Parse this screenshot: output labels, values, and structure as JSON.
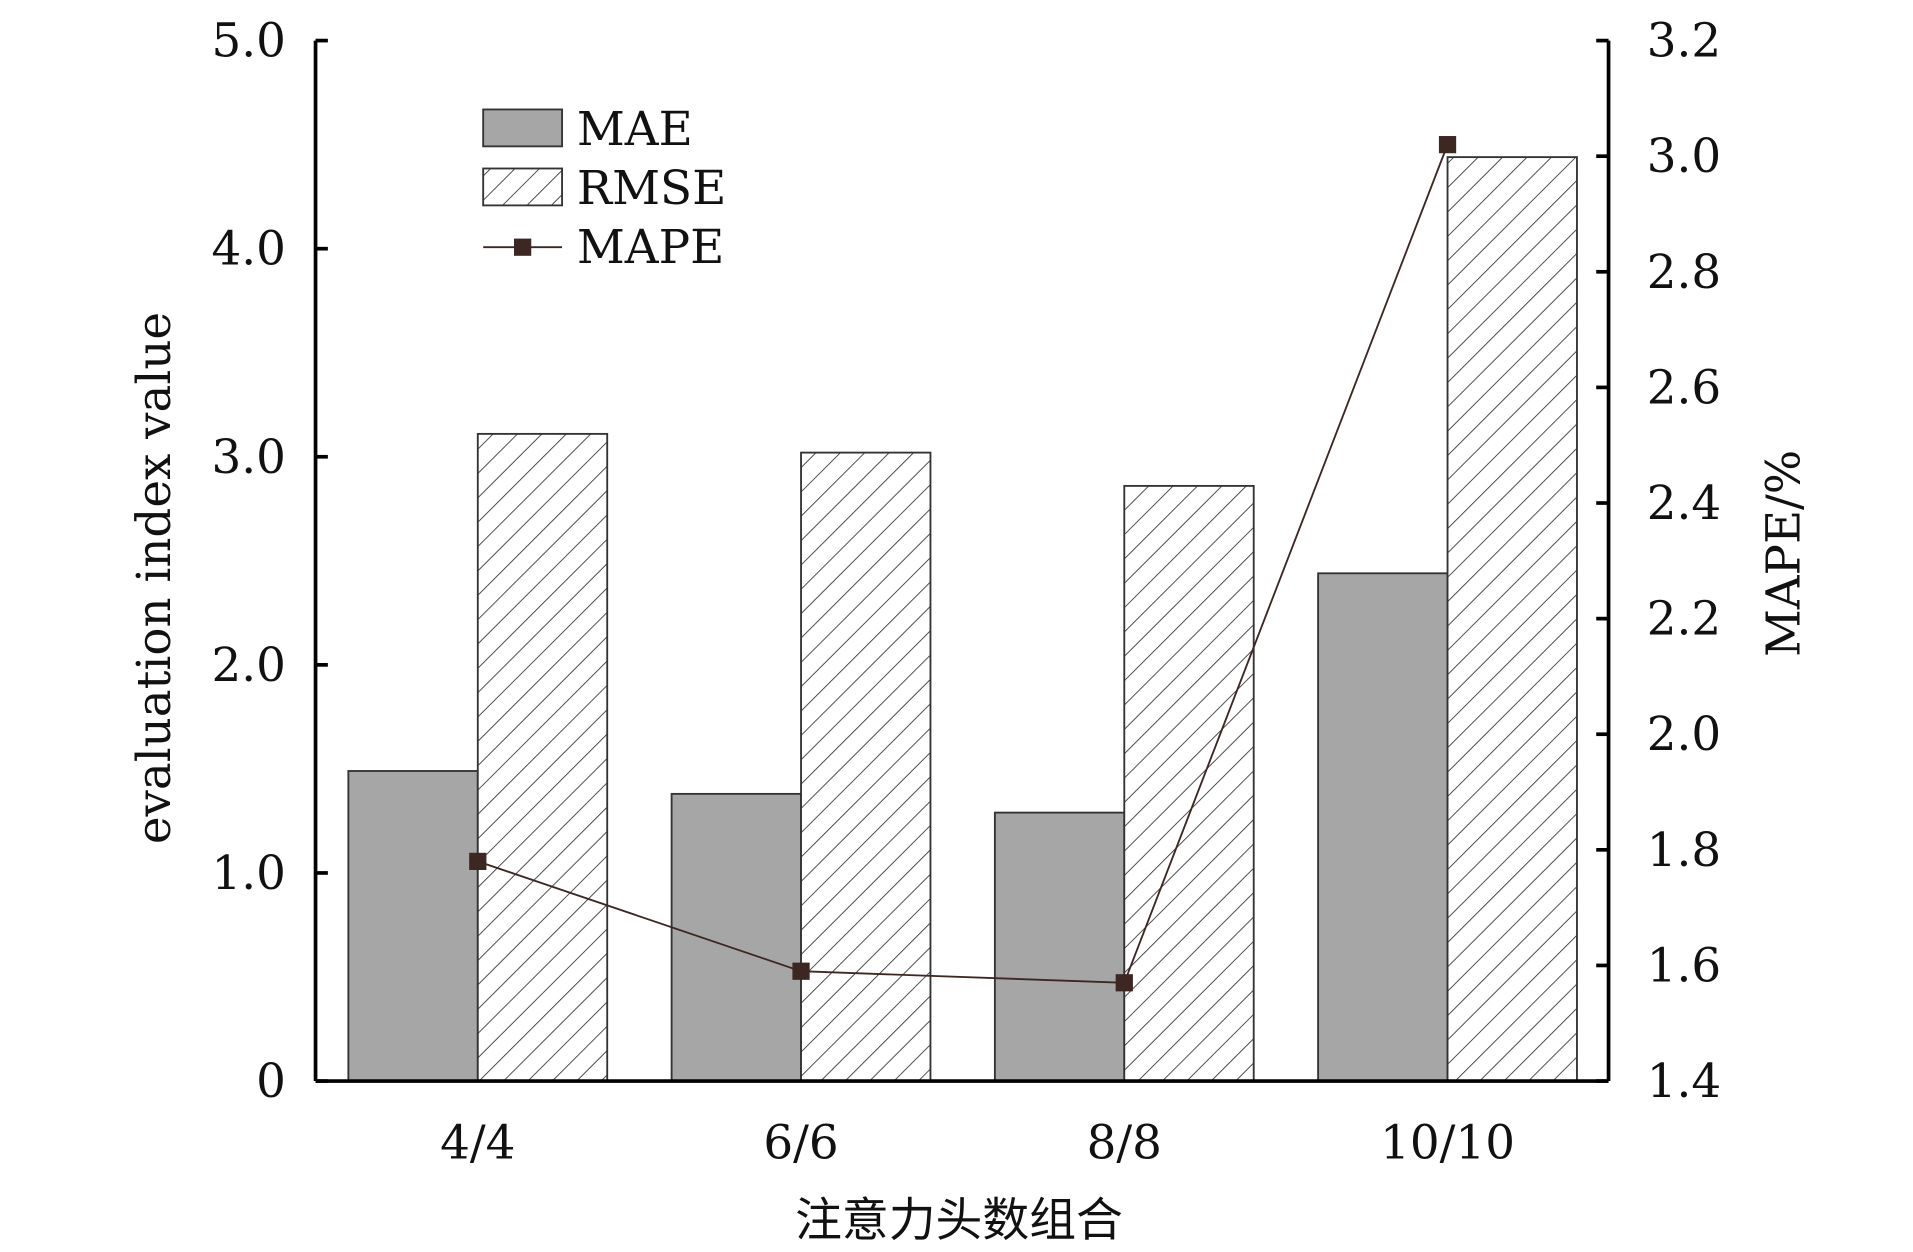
{
  "chart_data": {
    "type": "bar",
    "title": "",
    "categories": [
      "4/4",
      "6/6",
      "8/8",
      "10/10"
    ],
    "xlabel": "注意力头数组合",
    "ylabel": "evaluation index value",
    "y2label": "MAPE/%",
    "ylim": [
      0,
      5.0
    ],
    "y2lim": [
      1.4,
      3.2
    ],
    "yticks": [
      "0",
      "1.0",
      "2.0",
      "3.0",
      "4.0",
      "5.0"
    ],
    "y2ticks": [
      "1.4",
      "1.6",
      "1.8",
      "2.0",
      "2.2",
      "2.4",
      "2.6",
      "2.8",
      "3.0",
      "3.2"
    ],
    "legend_position": "top-left",
    "series": [
      {
        "name": "MAE",
        "kind": "bar",
        "axis": "left",
        "color": "#a6a6a6",
        "values": [
          1.49,
          1.38,
          1.29,
          2.44
        ]
      },
      {
        "name": "RMSE",
        "kind": "bar-hatched",
        "axis": "left",
        "color": "#ffffff",
        "values": [
          3.11,
          3.02,
          2.86,
          4.44
        ]
      },
      {
        "name": "MAPE",
        "kind": "line",
        "axis": "right",
        "color": "#3d2723",
        "values": [
          1.78,
          1.59,
          1.57,
          3.02
        ]
      }
    ]
  }
}
